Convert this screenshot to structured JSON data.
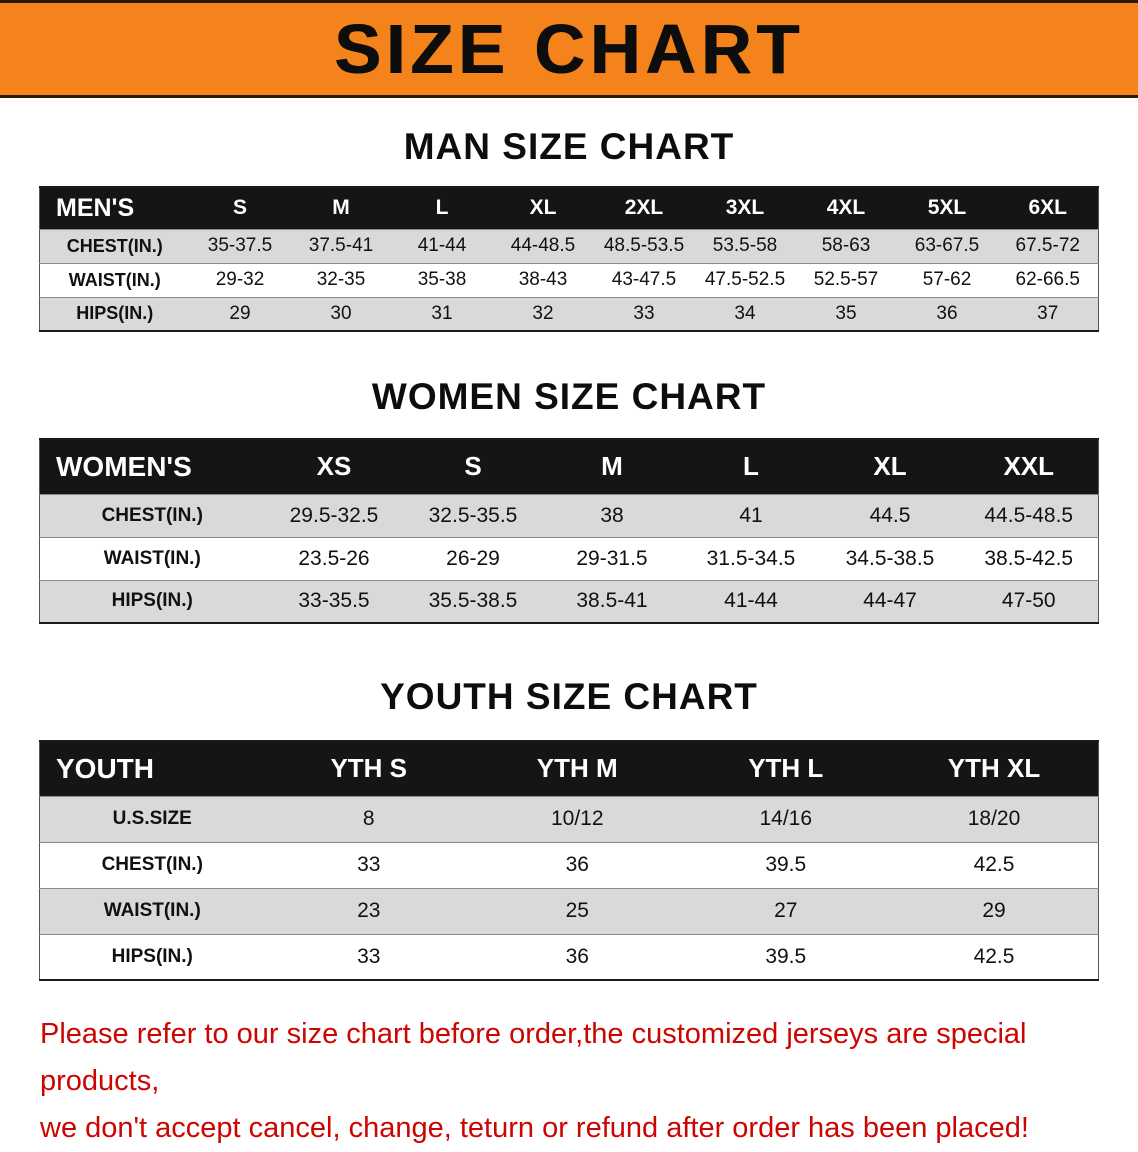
{
  "banner": {
    "title": "SIZE CHART",
    "bg_color": "#f5831c"
  },
  "colors": {
    "table_header_bg": "#151515",
    "row_alt": "#d9d9d9",
    "disclaimer_text": "#cc0500"
  },
  "men": {
    "heading": "MAN SIZE CHART",
    "table": {
      "header": [
        "MEN'S",
        "S",
        "M",
        "L",
        "XL",
        "2XL",
        "3XL",
        "4XL",
        "5XL",
        "6XL"
      ],
      "rows": [
        [
          "CHEST(IN.)",
          "35-37.5",
          "37.5-41",
          "41-44",
          "44-48.5",
          "48.5-53.5",
          "53.5-58",
          "58-63",
          "63-67.5",
          "67.5-72"
        ],
        [
          "WAIST(IN.)",
          "29-32",
          "32-35",
          "35-38",
          "38-43",
          "43-47.5",
          "47.5-52.5",
          "52.5-57",
          "57-62",
          "62-66.5"
        ],
        [
          "HIPS(IN.)",
          "29",
          "30",
          "31",
          "32",
          "33",
          "34",
          "35",
          "36",
          "37"
        ]
      ]
    }
  },
  "women": {
    "heading": "WOMEN SIZE CHART",
    "table": {
      "header": [
        "WOMEN'S",
        "XS",
        "S",
        "M",
        "L",
        "XL",
        "XXL"
      ],
      "rows": [
        [
          "CHEST(IN.)",
          "29.5-32.5",
          "32.5-35.5",
          "38",
          "41",
          "44.5",
          "44.5-48.5"
        ],
        [
          "WAIST(IN.)",
          "23.5-26",
          "26-29",
          "29-31.5",
          "31.5-34.5",
          "34.5-38.5",
          "38.5-42.5"
        ],
        [
          "HIPS(IN.)",
          "33-35.5",
          "35.5-38.5",
          "38.5-41",
          "41-44",
          "44-47",
          "47-50"
        ]
      ]
    }
  },
  "youth": {
    "heading": "YOUTH SIZE CHART",
    "table": {
      "header": [
        "YOUTH",
        "YTH S",
        "YTH M",
        "YTH L",
        "YTH XL"
      ],
      "rows": [
        [
          "U.S.SIZE",
          "8",
          "10/12",
          "14/16",
          "18/20"
        ],
        [
          "CHEST(IN.)",
          "33",
          "36",
          "39.5",
          "42.5"
        ],
        [
          "WAIST(IN.)",
          "23",
          "25",
          "27",
          "29"
        ],
        [
          "HIPS(IN.)",
          "33",
          "36",
          "39.5",
          "42.5"
        ]
      ]
    }
  },
  "disclaimer": {
    "lines": [
      "Please refer to our size chart before order,the customized jerseys are special products,",
      "we don't accept cancel, change, teturn or refund after order has been placed!"
    ]
  }
}
